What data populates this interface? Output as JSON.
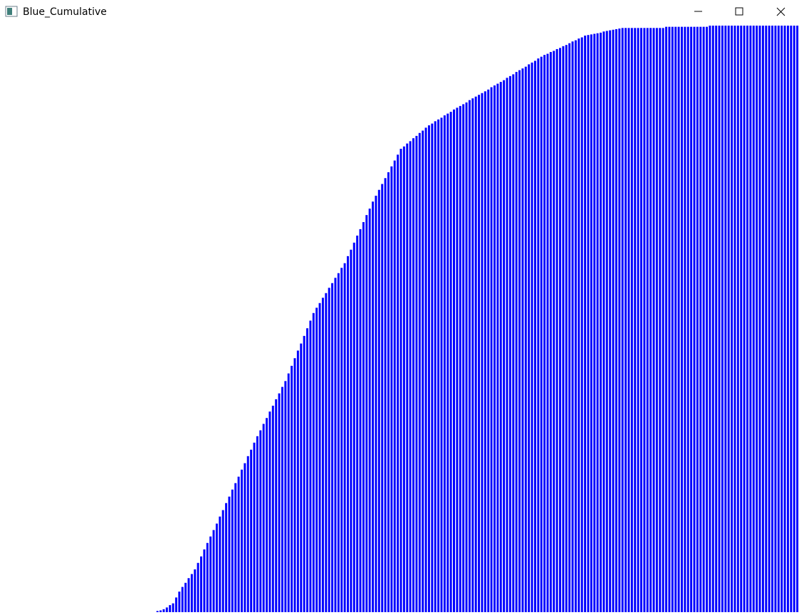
{
  "window": {
    "title": "Blue_Cumulative"
  },
  "chart_data": {
    "type": "bar",
    "color": "#0000ff",
    "ylim": [
      0,
      100
    ],
    "values": [
      0,
      0,
      0,
      0,
      0,
      0,
      0,
      0,
      0,
      0,
      0,
      0,
      0,
      0,
      0,
      0,
      0,
      0,
      0,
      0,
      0,
      0,
      0,
      0,
      0,
      0,
      0,
      0,
      0,
      0,
      0,
      0,
      0,
      0,
      0,
      0,
      0,
      0,
      0,
      0,
      0,
      0,
      0,
      0,
      0,
      0,
      0,
      0,
      0,
      0,
      0.2,
      0.3,
      0.5,
      0.8,
      1.2,
      1.5,
      2.5,
      3.5,
      4.3,
      5.0,
      5.8,
      6.5,
      7.3,
      8.4,
      9.5,
      10.7,
      11.8,
      12.9,
      14.0,
      15.1,
      16.3,
      17.4,
      18.6,
      19.7,
      20.9,
      22.0,
      23.1,
      24.3,
      25.4,
      26.6,
      27.7,
      28.9,
      30.0,
      31.0,
      32.1,
      33.1,
      34.2,
      35.2,
      36.3,
      37.3,
      38.4,
      39.4,
      40.7,
      42.0,
      43.3,
      44.6,
      45.8,
      47.1,
      48.4,
      49.7,
      51.0,
      51.9,
      52.7,
      53.6,
      54.4,
      55.3,
      56.1,
      57.0,
      57.8,
      58.7,
      59.5,
      60.7,
      61.8,
      63.0,
      64.2,
      65.3,
      66.5,
      67.7,
      68.8,
      70.0,
      71.0,
      72.0,
      73.0,
      74.0,
      75.0,
      76.0,
      77.0,
      78.0,
      79.0,
      79.4,
      79.9,
      80.3,
      80.8,
      81.2,
      81.7,
      82.1,
      82.6,
      83.0,
      83.3,
      83.7,
      84.0,
      84.3,
      84.7,
      85.0,
      85.3,
      85.7,
      86.0,
      86.3,
      86.6,
      86.9,
      87.3,
      87.6,
      87.9,
      88.2,
      88.5,
      88.8,
      89.1,
      89.5,
      89.8,
      90.1,
      90.4,
      90.7,
      91.1,
      91.4,
      91.7,
      92.1,
      92.4,
      92.7,
      93.0,
      93.4,
      93.7,
      94.0,
      94.4,
      94.7,
      95.0,
      95.2,
      95.5,
      95.7,
      96.0,
      96.2,
      96.5,
      96.7,
      97.0,
      97.3,
      97.5,
      97.8,
      98.0,
      98.3,
      98.4,
      98.5,
      98.6,
      98.7,
      98.8,
      99.0,
      99.1,
      99.2,
      99.3,
      99.4,
      99.5,
      99.6,
      99.6,
      99.6,
      99.6,
      99.6,
      99.6,
      99.6,
      99.6,
      99.6,
      99.6,
      99.6,
      99.6,
      99.6,
      99.6,
      99.8,
      99.8,
      99.8,
      99.8,
      99.8,
      99.8,
      99.8,
      99.8,
      99.8,
      99.8,
      99.8,
      99.8,
      99.8,
      99.8,
      100,
      100,
      100,
      100,
      100,
      100,
      100,
      100,
      100,
      100,
      100,
      100,
      100,
      100,
      100,
      100,
      100,
      100,
      100,
      100,
      100,
      100,
      100,
      100,
      100,
      100,
      100,
      100,
      100
    ]
  }
}
